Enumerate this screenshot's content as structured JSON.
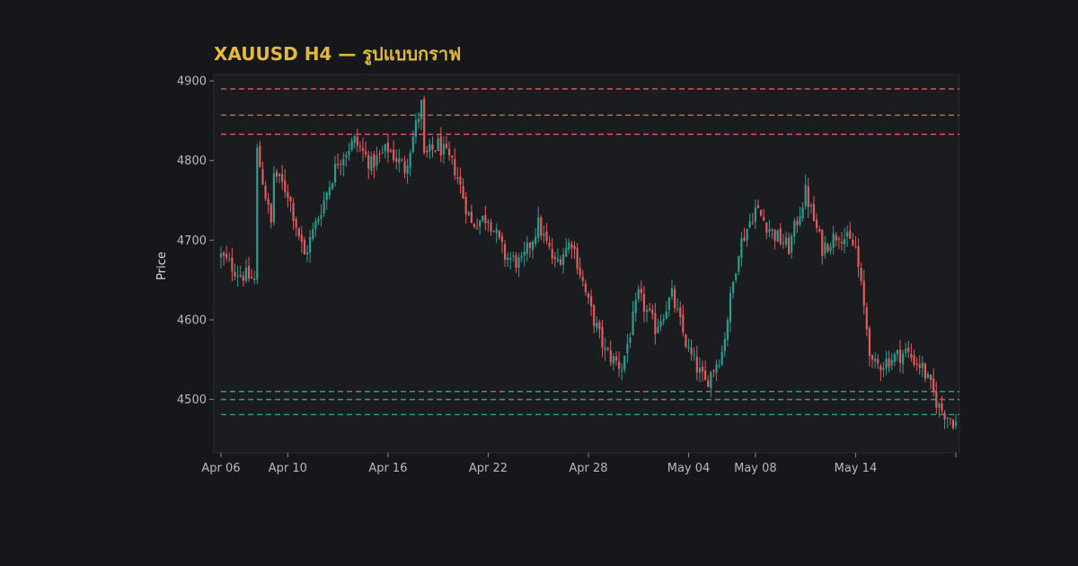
{
  "chart_data": {
    "type": "candlestick",
    "title": "XAUUSD H4 — รูปแบบกราฟ",
    "xlabel": "",
    "ylabel": "Price",
    "ylim": [
      4433,
      4908
    ],
    "xlim": [
      "2026-04-06",
      "2026-05-20"
    ],
    "grid": false,
    "colors": {
      "up": "#2a9d8f",
      "down": "#e05b5b",
      "background": "#16171a",
      "title": "#e2b93b",
      "resistance": "#e05b5b",
      "support": "#2a9d8f"
    },
    "y_ticks": [
      4500,
      4600,
      4700,
      4800,
      4900
    ],
    "x_ticks": [
      {
        "date": "2026-04-06",
        "label": "Apr 06"
      },
      {
        "date": "2026-04-10",
        "label": "Apr 10"
      },
      {
        "date": "2026-04-16",
        "label": "Apr 16"
      },
      {
        "date": "2026-04-22",
        "label": "Apr 22"
      },
      {
        "date": "2026-04-28",
        "label": "Apr 28"
      },
      {
        "date": "2026-05-04",
        "label": "May 04"
      },
      {
        "date": "2026-05-08",
        "label": "May 08"
      },
      {
        "date": "2026-05-14",
        "label": "May 14"
      }
    ],
    "resistance_levels": [
      4890,
      4857,
      4833
    ],
    "support_levels": [
      4510,
      4500,
      4481
    ],
    "anchor_prices": [
      [
        "2026-04-06",
        4610
      ],
      [
        "2026-04-06",
        4680
      ],
      [
        "2026-04-07",
        4660
      ],
      [
        "2026-04-08",
        4650
      ],
      [
        "2026-04-08",
        4830
      ],
      [
        "2026-04-09",
        4720
      ],
      [
        "2026-04-09",
        4790
      ],
      [
        "2026-04-10",
        4760
      ],
      [
        "2026-04-11",
        4680
      ],
      [
        "2026-04-12",
        4740
      ],
      [
        "2026-04-13",
        4800
      ],
      [
        "2026-04-14",
        4825
      ],
      [
        "2026-04-15",
        4795
      ],
      [
        "2026-04-16",
        4815
      ],
      [
        "2026-04-17",
        4790
      ],
      [
        "2026-04-18",
        4870
      ],
      [
        "2026-04-18",
        4800
      ],
      [
        "2026-04-19",
        4820
      ],
      [
        "2026-04-20",
        4790
      ],
      [
        "2026-04-21",
        4720
      ],
      [
        "2026-04-22",
        4730
      ],
      [
        "2026-04-23",
        4680
      ],
      [
        "2026-04-24",
        4670
      ],
      [
        "2026-04-25",
        4720
      ],
      [
        "2026-04-26",
        4670
      ],
      [
        "2026-04-27",
        4700
      ],
      [
        "2026-04-28",
        4620
      ],
      [
        "2026-04-29",
        4560
      ],
      [
        "2026-04-30",
        4540
      ],
      [
        "2026-05-01",
        4630
      ],
      [
        "2026-05-02",
        4590
      ],
      [
        "2026-05-03",
        4630
      ],
      [
        "2026-05-04",
        4560
      ],
      [
        "2026-05-05",
        4520
      ],
      [
        "2026-05-06",
        4560
      ],
      [
        "2026-05-07",
        4690
      ],
      [
        "2026-05-08",
        4740
      ],
      [
        "2026-05-09",
        4710
      ],
      [
        "2026-05-10",
        4690
      ],
      [
        "2026-05-11",
        4760
      ],
      [
        "2026-05-12",
        4690
      ],
      [
        "2026-05-13",
        4710
      ],
      [
        "2026-05-14",
        4690
      ],
      [
        "2026-05-15",
        4540
      ],
      [
        "2026-05-16",
        4550
      ],
      [
        "2026-05-17",
        4560
      ],
      [
        "2026-05-18",
        4540
      ],
      [
        "2026-05-19",
        4490
      ],
      [
        "2026-05-20",
        4470
      ]
    ]
  }
}
